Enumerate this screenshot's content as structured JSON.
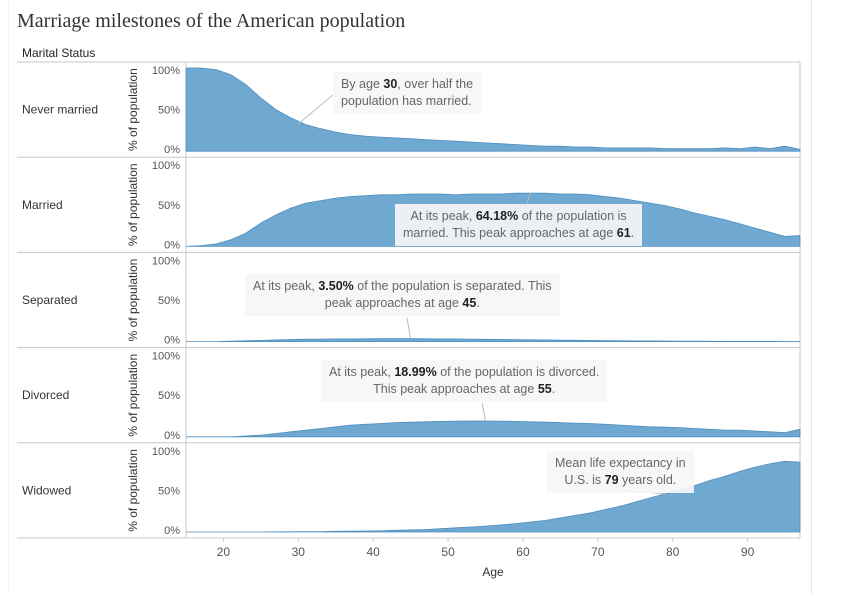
{
  "title": "Marriage milestones of the American population",
  "dimension_header": "Marital Status",
  "colors": {
    "area": "#6fa8d1",
    "area_stroke": "#4f8fbf",
    "annotation_line": "#bbbbbb",
    "axis": "#c8c8c8"
  },
  "chart_data": {
    "type": "area",
    "title": "Marriage milestones of the American population",
    "xlabel": "Age",
    "ylabel": "% of population",
    "xlim": [
      15,
      97
    ],
    "ylim": [
      0,
      100
    ],
    "x_ticks": [
      "20",
      "30",
      "40",
      "50",
      "60",
      "70",
      "80",
      "90"
    ],
    "x_tick_values": [
      20,
      30,
      40,
      50,
      60,
      70,
      80,
      90
    ],
    "y_ticks": [
      "0%",
      "50%",
      "100%"
    ],
    "y_tick_values": [
      0,
      50,
      100
    ],
    "ages": [
      15,
      17,
      19,
      21,
      23,
      25,
      27,
      29,
      31,
      33,
      35,
      37,
      39,
      41,
      43,
      45,
      47,
      49,
      51,
      53,
      55,
      57,
      59,
      61,
      63,
      65,
      67,
      69,
      71,
      73,
      75,
      77,
      79,
      81,
      83,
      85,
      87,
      89,
      91,
      93,
      95,
      97
    ],
    "series": [
      {
        "name": "Never married",
        "values": [
          100,
          100,
          98,
          92,
          80,
          64,
          50,
          40,
          32,
          27,
          23,
          20,
          18,
          17,
          16,
          15,
          14,
          13,
          12,
          11,
          10,
          9,
          8,
          7,
          6,
          6,
          5,
          5,
          4,
          4,
          4,
          4,
          3,
          3,
          3,
          3,
          4,
          3,
          5,
          3,
          6,
          2
        ]
      },
      {
        "name": "Married",
        "values": [
          0,
          1,
          3,
          8,
          16,
          28,
          38,
          46,
          52,
          55,
          58,
          60,
          61,
          62,
          62,
          63,
          63,
          63,
          62,
          63,
          63,
          63,
          64,
          64,
          64,
          63,
          63,
          62,
          60,
          58,
          55,
          52,
          49,
          45,
          40,
          36,
          32,
          27,
          22,
          17,
          12,
          13
        ]
      },
      {
        "name": "Separated",
        "values": [
          0,
          0,
          0,
          0.5,
          1,
          1.5,
          2,
          2.5,
          3,
          3,
          3.2,
          3.3,
          3.4,
          3.5,
          3.5,
          3.5,
          3.4,
          3.3,
          3.2,
          3,
          2.8,
          2.6,
          2.4,
          2.2,
          2,
          1.8,
          1.6,
          1.4,
          1.2,
          1,
          0.9,
          0.8,
          0.7,
          0.6,
          0.5,
          0.4,
          0.3,
          0.3,
          0.2,
          0.2,
          0.1,
          0.1
        ]
      },
      {
        "name": "Divorced",
        "values": [
          0,
          0,
          0,
          0,
          1,
          2,
          4,
          6,
          8,
          10,
          12,
          14,
          15,
          16,
          17,
          17.5,
          18,
          18.5,
          18.8,
          19,
          19,
          18.9,
          18.5,
          18,
          17.5,
          17,
          16.5,
          16,
          15,
          14,
          13,
          12,
          11.5,
          11,
          10,
          9,
          8,
          8,
          7,
          6,
          5,
          9
        ]
      },
      {
        "name": "Widowed",
        "values": [
          0,
          0,
          0,
          0,
          0,
          0,
          0.2,
          0.3,
          0.5,
          0.5,
          0.8,
          1,
          1.2,
          1.5,
          2,
          2.5,
          3,
          4,
          5,
          6,
          7,
          8.5,
          10,
          12,
          14,
          17,
          20,
          23,
          27,
          31,
          36,
          41,
          46,
          51,
          56,
          62,
          67,
          73,
          78,
          82,
          85,
          84
        ]
      }
    ],
    "annotations": [
      {
        "series": "Never married",
        "x": 30,
        "y": 33,
        "text": "By age 30, over half the population has married."
      },
      {
        "series": "Married",
        "x": 61,
        "y": 64.18,
        "text": "At its peak, 64.18% of the population is married. This peak approaches at age 61."
      },
      {
        "series": "Separated",
        "x": 45,
        "y": 3.5,
        "text": "At its peak, 3.50% of the population is separated. This peak approaches at age 45."
      },
      {
        "series": "Divorced",
        "x": 55,
        "y": 18.99,
        "text": "At its peak, 18.99% of the population is divorced. This peak approaches at age 55."
      },
      {
        "series": "Widowed",
        "x": 79,
        "y": 46,
        "text": "Mean life expectancy in U.S. is 79 years old."
      }
    ]
  },
  "annotations_text": {
    "never_married": {
      "t1": "By age ",
      "b1": "30",
      "t2": ", over half the",
      "t3": "population has married."
    },
    "married": {
      "t1": "At its peak, ",
      "b1": "64.18%",
      "t2": " of the population is",
      "t3": "married. This peak approaches at age ",
      "b2": "61",
      "t4": "."
    },
    "separated": {
      "t1": "At its peak, ",
      "b1": "3.50%",
      "t2": " of the population is separated. This",
      "t3": "peak approaches at age ",
      "b2": "45",
      "t4": "."
    },
    "divorced": {
      "t1": "At its peak, ",
      "b1": "18.99%",
      "t2": " of the population is divorced.",
      "t3": "This peak approaches at age ",
      "b2": "55",
      "t4": "."
    },
    "widowed": {
      "t1": "Mean life expectancy in",
      "t2": "U.S. is ",
      "b1": "79",
      "t3": " years old."
    }
  }
}
